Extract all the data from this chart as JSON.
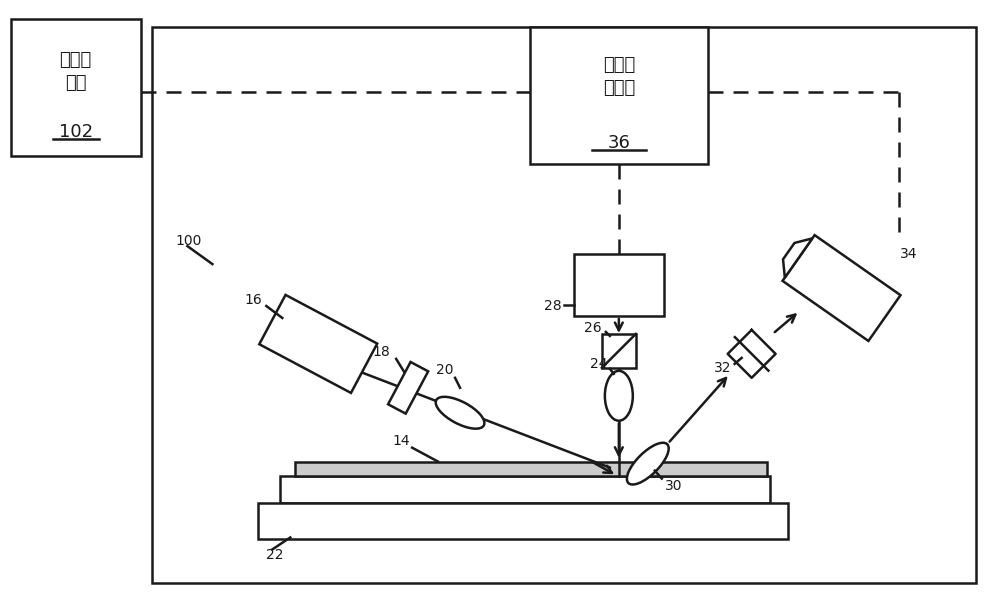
{
  "bg": "#ffffff",
  "lc": "#1a1a1a",
  "lw": 1.8,
  "fw": 10.0,
  "fh": 6.06,
  "dpi": 100,
  "fz_zh": 13,
  "fz_sm": 10,
  "fz_mid": 11,
  "labels": {
    "sys": "计算机\n系统",
    "sys_num": "102",
    "subsys": "计算机\n子系统",
    "subsys_num": "36",
    "n100": "100",
    "n14": "14",
    "n16": "16",
    "n18": "18",
    "n20": "20",
    "n22": "22",
    "n24": "24",
    "n26": "26",
    "n28": "28",
    "n30": "30",
    "n32": "32",
    "n34": "34"
  }
}
